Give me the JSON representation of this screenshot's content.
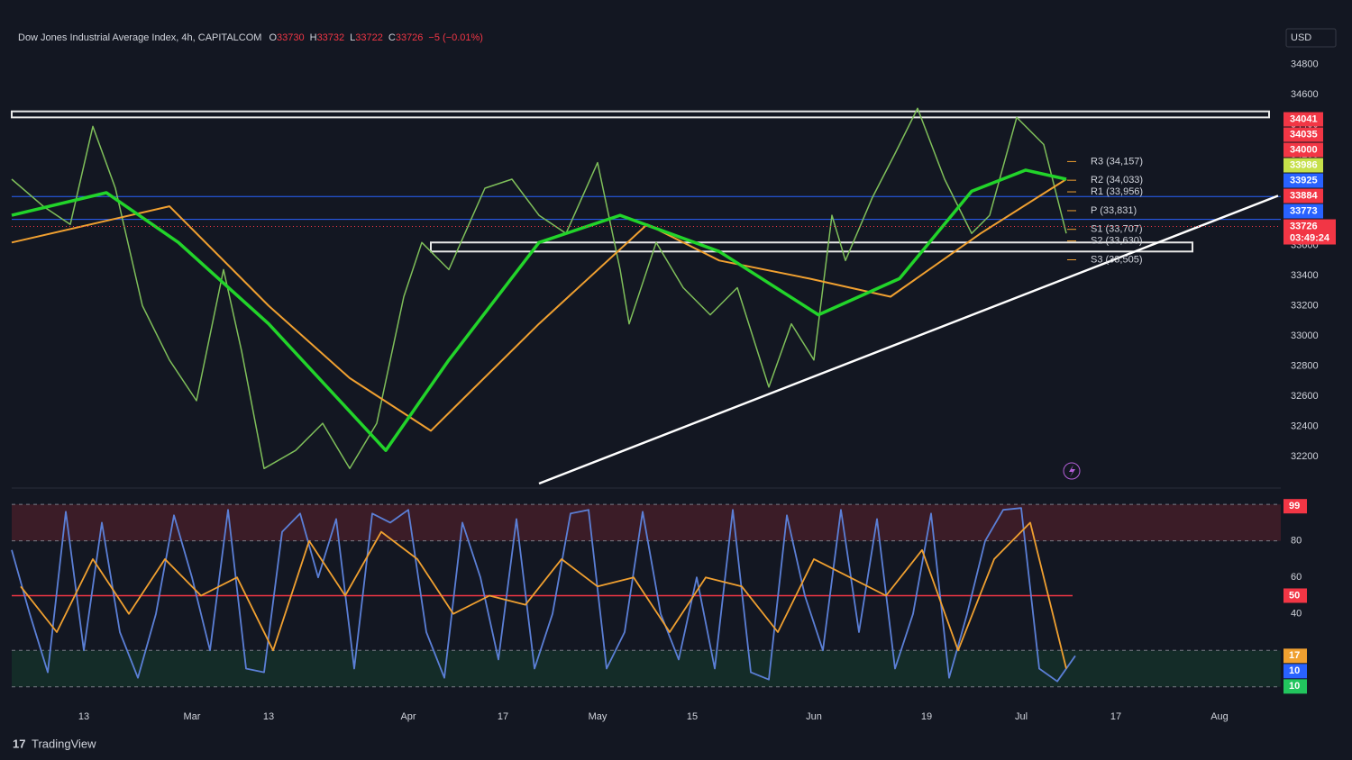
{
  "chart_data": {
    "type": "line",
    "title": "Dow Jones Industrial Average Index, 4h, CAPITALCOM",
    "ohlc": [
      {
        "label": "O",
        "value": 33730
      },
      {
        "label": "H",
        "value": 33732
      },
      {
        "label": "L",
        "value": 33722
      },
      {
        "label": "C",
        "value": 33726
      }
    ],
    "change": "−5 (−0.01%)",
    "currency": "USD",
    "countdown": "03:49:24",
    "brand": "TradingView",
    "xlim": [
      0,
      281
    ],
    "xticks": [
      {
        "value": 16,
        "label": "13"
      },
      {
        "value": 40,
        "label": "Mar"
      },
      {
        "value": 57,
        "label": "13"
      },
      {
        "value": 88,
        "label": "Apr"
      },
      {
        "value": 109,
        "label": "17"
      },
      {
        "value": 130,
        "label": "May"
      },
      {
        "value": 151,
        "label": "15"
      },
      {
        "value": 178,
        "label": "Jun"
      },
      {
        "value": 203,
        "label": "19"
      },
      {
        "value": 224,
        "label": "Jul"
      },
      {
        "value": 245,
        "label": "17"
      },
      {
        "value": 268,
        "label": "Aug"
      }
    ],
    "ylim": [
      32020,
      35020
    ],
    "yticks": [
      32200,
      32400,
      32600,
      32800,
      33000,
      33200,
      33400,
      33600,
      33800,
      34000,
      34200,
      34400,
      34600,
      34800
    ],
    "series": [
      {
        "color": "#7fbf5a",
        "x": [
          0,
          7,
          13,
          18,
          23,
          29,
          35,
          41,
          47,
          51,
          56,
          63,
          69,
          75,
          81,
          87,
          91,
          97,
          105,
          111,
          117,
          123,
          130,
          135,
          137,
          143,
          149,
          155,
          161,
          168,
          173,
          178,
          182,
          185,
          191,
          196,
          201,
          207,
          213,
          217,
          223,
          229,
          234
        ],
        "values": [
          34040,
          33860,
          33740,
          34390,
          33980,
          33200,
          32840,
          32570,
          33440,
          32900,
          32120,
          32240,
          32420,
          32120,
          32420,
          33260,
          33620,
          33440,
          33980,
          34040,
          33800,
          33680,
          34150,
          33440,
          33080,
          33620,
          33320,
          33140,
          33320,
          32660,
          33080,
          32840,
          33800,
          33500,
          33920,
          34210,
          34510,
          34040,
          33680,
          33800,
          34450,
          34270,
          33680
        ]
      },
      {
        "color": "#f0a030",
        "x": [
          0,
          35,
          57,
          75,
          93,
          117,
          141,
          157,
          177,
          195,
          215,
          234
        ],
        "values": [
          33620,
          33860,
          33200,
          32720,
          32370,
          33080,
          33740,
          33500,
          33380,
          33260,
          33680,
          34040
        ]
      },
      {
        "color": "#22d42a",
        "x": [
          0,
          21,
          37,
          57,
          83,
          97,
          117,
          135,
          157,
          179,
          197,
          213,
          225,
          234
        ],
        "values": [
          33800,
          33950,
          33620,
          33080,
          32240,
          32840,
          33620,
          33800,
          33560,
          33140,
          33380,
          33960,
          34100,
          34040
        ]
      }
    ],
    "zones": [
      {
        "x": [
          0,
          279
        ],
        "y": [
          34450,
          34490
        ]
      },
      {
        "x": [
          93,
          262
        ],
        "y": [
          33560,
          33620
        ]
      }
    ],
    "levels": [
      {
        "value": 33925,
        "color": "#2962ff"
      },
      {
        "value": 33773,
        "color": "#2962ff"
      }
    ],
    "trendline": {
      "x": [
        117,
        281
      ],
      "y": [
        32020,
        33930
      ]
    },
    "pivots": [
      {
        "value": 34157,
        "label": "R3 (34,157)"
      },
      {
        "value": 34033,
        "label": "R2 (34,033)"
      },
      {
        "value": 33956,
        "label": "R1 (33,956)"
      },
      {
        "value": 33831,
        "label": "P (33,831)"
      },
      {
        "value": 33707,
        "label": "S1 (33,707)"
      },
      {
        "value": 33630,
        "label": "S2 (33,630)"
      },
      {
        "value": 33505,
        "label": "S3 (33,505)"
      }
    ],
    "price_tags": [
      {
        "value": 34041,
        "color": "#f23645"
      },
      {
        "value": 34035,
        "color": "#f23645"
      },
      {
        "value": 34000,
        "color": "#f23645"
      },
      {
        "value": 33986,
        "color": "#c6e04a"
      },
      {
        "value": 33925,
        "color": "#2962ff"
      },
      {
        "value": 33884,
        "color": "#f23645"
      },
      {
        "value": 33773,
        "color": "#2962ff"
      },
      {
        "value": 33726,
        "color": "#f23645"
      }
    ],
    "oscillator": {
      "ylim": [
        -8,
        106
      ],
      "yticks": [
        40,
        60,
        80
      ],
      "overbought": [
        80,
        100
      ],
      "oversold": [
        0,
        20
      ],
      "series": [
        {
          "color": "#5b7fd6",
          "x": [
            0,
            4,
            8,
            12,
            16,
            20,
            24,
            28,
            32,
            36,
            40,
            44,
            48,
            52,
            56,
            60,
            64,
            68,
            72,
            76,
            80,
            84,
            88,
            92,
            96,
            100,
            104,
            108,
            112,
            116,
            120,
            124,
            128,
            132,
            136,
            140,
            144,
            148,
            152,
            156,
            160,
            164,
            168,
            172,
            176,
            180,
            184,
            188,
            192,
            196,
            200,
            204,
            208,
            212,
            216,
            220,
            224,
            228,
            232,
            236
          ],
          "values": [
            75,
            40,
            8,
            96,
            20,
            90,
            30,
            5,
            40,
            94,
            60,
            20,
            97,
            10,
            8,
            85,
            95,
            60,
            92,
            10,
            95,
            90,
            97,
            30,
            5,
            90,
            60,
            15,
            92,
            10,
            40,
            95,
            97,
            10,
            30,
            96,
            40,
            15,
            60,
            10,
            97,
            8,
            4,
            94,
            50,
            20,
            97,
            30,
            92,
            10,
            40,
            95,
            5,
            40,
            80,
            97,
            98,
            10,
            3,
            17
          ]
        },
        {
          "color": "#f0a030",
          "x": [
            2,
            10,
            18,
            26,
            34,
            42,
            50,
            58,
            66,
            74,
            82,
            90,
            98,
            106,
            114,
            122,
            130,
            138,
            146,
            154,
            162,
            170,
            178,
            186,
            194,
            202,
            210,
            218,
            226,
            234
          ],
          "values": [
            55,
            30,
            70,
            40,
            70,
            50,
            60,
            20,
            80,
            50,
            85,
            70,
            40,
            50,
            45,
            70,
            55,
            60,
            30,
            60,
            55,
            30,
            70,
            60,
            50,
            75,
            20,
            70,
            90,
            10
          ]
        }
      ],
      "tags": [
        {
          "value": 99,
          "color": "#f23645"
        },
        {
          "value": 50,
          "color": "#f23645"
        },
        {
          "value": 17,
          "color": "#f0a030"
        },
        {
          "value": 10,
          "color": "#2962ff"
        },
        {
          "value": 10,
          "color": "#22c55e"
        }
      ]
    }
  }
}
